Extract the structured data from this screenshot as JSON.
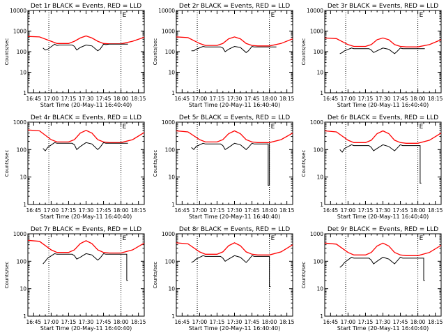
{
  "chart_data": [
    {
      "type": "line",
      "title": "Det 1r BLACK = Events, RED = LLD",
      "xlabel": "Start Time (20-May-11 16:40:40)",
      "ylabel": "Counts/sec",
      "yscale": "log",
      "ylim": [
        1,
        10000
      ],
      "xlim": [
        "16:40",
        "18:20"
      ],
      "xticks": [
        "16:45",
        "17:00",
        "17:15",
        "17:30",
        "17:45",
        "18:00",
        "18:15"
      ],
      "yticks": [
        "1",
        "10",
        "100",
        "1000",
        "10000"
      ],
      "markers": [
        "16:58",
        "18:00"
      ],
      "marker_label": "E",
      "series": [
        {
          "color": "#ff0000",
          "x": [
            "16:40",
            "16:50",
            "17:00",
            "17:05",
            "17:15",
            "17:20",
            "17:25",
            "17:30",
            "17:35",
            "17:40",
            "17:45",
            "17:50",
            "18:00",
            "18:10",
            "18:20"
          ],
          "values": [
            550,
            520,
            320,
            250,
            250,
            320,
            460,
            580,
            460,
            320,
            250,
            240,
            240,
            320,
            500
          ]
        },
        {
          "color": "#000000",
          "x": [
            "16:53",
            "16:55",
            "16:57",
            "17:03",
            "17:05",
            "17:07",
            "17:18",
            "17:20",
            "17:22",
            "17:25",
            "17:30",
            "17:35",
            "17:40",
            "17:42",
            "17:45",
            "17:47",
            "17:50",
            "18:00",
            "18:06"
          ],
          "values": [
            150,
            120,
            130,
            230,
            200,
            210,
            210,
            180,
            120,
            160,
            210,
            190,
            110,
            130,
            230,
            220,
            230,
            230,
            230
          ]
        }
      ]
    },
    {
      "type": "line",
      "title": "Det 2r BLACK = Events, RED = LLD",
      "xlabel": "Start Time (20-May-11 16:40:40)",
      "ylabel": "Counts/sec",
      "yscale": "log",
      "ylim": [
        1,
        10000
      ],
      "xlim": [
        "16:40",
        "18:20"
      ],
      "xticks": [
        "16:45",
        "17:00",
        "17:15",
        "17:30",
        "17:45",
        "18:00",
        "18:15"
      ],
      "yticks": [
        "1",
        "10",
        "100",
        "1000",
        "10000"
      ],
      "markers": [
        "16:58",
        "18:00"
      ],
      "marker_label": "E",
      "series": [
        {
          "color": "#ff0000",
          "x": [
            "16:40",
            "16:50",
            "17:00",
            "17:05",
            "17:15",
            "17:20",
            "17:25",
            "17:30",
            "17:35",
            "17:40",
            "17:45",
            "17:50",
            "18:00",
            "18:10",
            "18:20"
          ],
          "values": [
            520,
            480,
            250,
            200,
            200,
            250,
            420,
            520,
            420,
            250,
            200,
            190,
            190,
            250,
            420
          ]
        },
        {
          "color": "#000000",
          "x": [
            "16:53",
            "16:55",
            "16:57",
            "17:03",
            "17:05",
            "17:07",
            "17:18",
            "17:20",
            "17:22",
            "17:25",
            "17:30",
            "17:35",
            "17:40",
            "17:42",
            "17:45",
            "17:47",
            "17:50",
            "18:00",
            "18:06"
          ],
          "values": [
            110,
            110,
            130,
            180,
            170,
            170,
            170,
            150,
            100,
            130,
            180,
            160,
            90,
            110,
            180,
            170,
            170,
            170,
            170
          ]
        }
      ]
    },
    {
      "type": "line",
      "title": "Det 3r BLACK = Events, RED = LLD",
      "xlabel": "Start Time (20-May-11 16:40:40)",
      "ylabel": "Counts/sec",
      "yscale": "log",
      "ylim": [
        1,
        10000
      ],
      "xlim": [
        "16:40",
        "18:20"
      ],
      "xticks": [
        "16:45",
        "17:00",
        "17:15",
        "17:30",
        "17:45",
        "18:00",
        "18:15"
      ],
      "yticks": [
        "1",
        "10",
        "100",
        "1000",
        "10000"
      ],
      "markers": [
        "16:58",
        "18:00"
      ],
      "marker_label": "E",
      "series": [
        {
          "color": "#ff0000",
          "x": [
            "16:40",
            "16:50",
            "17:00",
            "17:05",
            "17:15",
            "17:20",
            "17:25",
            "17:30",
            "17:35",
            "17:40",
            "17:45",
            "17:50",
            "18:00",
            "18:10",
            "18:20"
          ],
          "values": [
            460,
            430,
            220,
            180,
            180,
            220,
            380,
            460,
            380,
            220,
            180,
            170,
            170,
            220,
            380
          ]
        },
        {
          "color": "#000000",
          "x": [
            "16:53",
            "16:55",
            "16:57",
            "17:03",
            "17:05",
            "17:07",
            "17:18",
            "17:20",
            "17:22",
            "17:25",
            "17:30",
            "17:35",
            "17:40",
            "17:42",
            "17:45",
            "17:47",
            "17:50",
            "18:00",
            "18:06"
          ],
          "values": [
            80,
            90,
            110,
            150,
            140,
            140,
            140,
            120,
            90,
            110,
            150,
            130,
            80,
            100,
            150,
            140,
            140,
            140,
            140
          ]
        }
      ]
    },
    {
      "type": "line",
      "title": "Det 4r BLACK = Events, RED = LLD",
      "xlabel": "Start Time (20-May-11 16:40:40)",
      "ylabel": "Counts/sec",
      "yscale": "log",
      "ylim": [
        1,
        1000
      ],
      "xlim": [
        "16:40",
        "18:20"
      ],
      "xticks": [
        "16:45",
        "17:00",
        "17:15",
        "17:30",
        "17:45",
        "18:00",
        "18:15"
      ],
      "yticks": [
        "1",
        "10",
        "100",
        "1000"
      ],
      "markers": [
        "16:58",
        "18:00"
      ],
      "marker_label": "E",
      "series": [
        {
          "color": "#ff0000",
          "x": [
            "16:40",
            "16:50",
            "17:00",
            "17:05",
            "17:15",
            "17:20",
            "17:25",
            "17:30",
            "17:35",
            "17:40",
            "17:45",
            "17:50",
            "18:00",
            "18:10",
            "18:20"
          ],
          "values": [
            520,
            480,
            230,
            190,
            190,
            230,
            400,
            500,
            400,
            230,
            190,
            180,
            180,
            230,
            420
          ]
        },
        {
          "color": "#000000",
          "x": [
            "16:53",
            "16:55",
            "16:57",
            "17:03",
            "17:05",
            "17:07",
            "17:18",
            "17:20",
            "17:22",
            "17:25",
            "17:30",
            "17:35",
            "17:40",
            "17:42",
            "17:45",
            "17:47",
            "17:50",
            "18:00",
            "18:06"
          ],
          "values": [
            110,
            90,
            120,
            180,
            170,
            170,
            170,
            150,
            100,
            130,
            180,
            160,
            100,
            120,
            180,
            170,
            170,
            170,
            170
          ]
        }
      ]
    },
    {
      "type": "line",
      "title": "Det 5r BLACK = Events, RED = LLD",
      "xlabel": "Start Time (20-May-11 16:40:40)",
      "ylabel": "Counts/sec",
      "yscale": "log",
      "ylim": [
        1,
        1000
      ],
      "xlim": [
        "16:40",
        "18:20"
      ],
      "xticks": [
        "16:45",
        "17:00",
        "17:15",
        "17:30",
        "17:45",
        "18:00",
        "18:15"
      ],
      "yticks": [
        "1",
        "10",
        "100",
        "1000"
      ],
      "markers": [
        "16:58",
        "18:00"
      ],
      "marker_label": "E",
      "series": [
        {
          "color": "#ff0000",
          "x": [
            "16:40",
            "16:50",
            "17:00",
            "17:05",
            "17:15",
            "17:20",
            "17:25",
            "17:30",
            "17:35",
            "17:40",
            "17:45",
            "17:50",
            "18:00",
            "18:10",
            "18:20"
          ],
          "values": [
            480,
            440,
            230,
            190,
            190,
            230,
            380,
            480,
            380,
            230,
            190,
            180,
            180,
            230,
            400
          ]
        },
        {
          "color": "#000000",
          "x": [
            "16:53",
            "16:55",
            "16:57",
            "17:03",
            "17:05",
            "17:07",
            "17:18",
            "17:20",
            "17:22",
            "17:25",
            "17:30",
            "17:35",
            "17:40",
            "17:42",
            "17:45",
            "17:47",
            "17:50",
            "17:59",
            "17:59",
            "18:00",
            "18:00"
          ],
          "values": [
            120,
            100,
            130,
            170,
            160,
            160,
            160,
            140,
            100,
            120,
            170,
            150,
            100,
            120,
            170,
            160,
            160,
            160,
            5,
            5,
            160
          ]
        }
      ]
    },
    {
      "type": "line",
      "title": "Det 6r BLACK = Events, RED = LLD",
      "xlabel": "Start Time (20-May-11 16:40:40)",
      "ylabel": "Counts/sec",
      "yscale": "log",
      "ylim": [
        1,
        1000
      ],
      "xlim": [
        "16:40",
        "18:20"
      ],
      "xticks": [
        "16:45",
        "17:00",
        "17:15",
        "17:30",
        "17:45",
        "18:00",
        "18:15"
      ],
      "yticks": [
        "1",
        "10",
        "100",
        "1000"
      ],
      "markers": [
        "16:58",
        "18:00"
      ],
      "marker_label": "E",
      "series": [
        {
          "color": "#ff0000",
          "x": [
            "16:40",
            "16:50",
            "17:00",
            "17:05",
            "17:15",
            "17:20",
            "17:25",
            "17:30",
            "17:35",
            "17:40",
            "17:45",
            "17:50",
            "18:00",
            "18:10",
            "18:20"
          ],
          "values": [
            480,
            440,
            220,
            180,
            180,
            220,
            380,
            480,
            380,
            220,
            180,
            170,
            170,
            220,
            400
          ]
        },
        {
          "color": "#000000",
          "x": [
            "16:53",
            "16:55",
            "16:57",
            "17:03",
            "17:05",
            "17:07",
            "17:18",
            "17:20",
            "17:22",
            "17:25",
            "17:30",
            "17:35",
            "17:40",
            "17:42",
            "17:45",
            "17:47",
            "17:50",
            "18:02",
            "18:02",
            "18:03"
          ],
          "values": [
            100,
            80,
            110,
            150,
            140,
            140,
            140,
            120,
            90,
            110,
            150,
            130,
            90,
            110,
            150,
            140,
            140,
            140,
            6,
            6
          ]
        }
      ]
    },
    {
      "type": "line",
      "title": "Det 7r BLACK = Events, RED = LLD",
      "xlabel": "Start Time (20-May-11 16:40:40)",
      "ylabel": "Counts/sec",
      "yscale": "log",
      "ylim": [
        1,
        1000
      ],
      "xlim": [
        "16:40",
        "18:20"
      ],
      "xticks": [
        "16:45",
        "17:00",
        "17:15",
        "17:30",
        "17:45",
        "18:00",
        "18:15"
      ],
      "yticks": [
        "1",
        "10",
        "100",
        "1000"
      ],
      "markers": [
        "16:58",
        "18:00"
      ],
      "marker_label": "E",
      "series": [
        {
          "color": "#ff0000",
          "x": [
            "16:40",
            "16:50",
            "17:00",
            "17:05",
            "17:15",
            "17:20",
            "17:25",
            "17:30",
            "17:35",
            "17:40",
            "17:45",
            "17:50",
            "18:00",
            "18:10",
            "18:20"
          ],
          "values": [
            580,
            530,
            260,
            210,
            210,
            260,
            440,
            560,
            440,
            260,
            210,
            200,
            200,
            260,
            460
          ]
        },
        {
          "color": "#000000",
          "x": [
            "16:53",
            "16:55",
            "16:57",
            "17:03",
            "17:05",
            "17:07",
            "17:18",
            "17:20",
            "17:22",
            "17:25",
            "17:30",
            "17:35",
            "17:40",
            "17:42",
            "17:45",
            "17:47",
            "17:50",
            "18:05",
            "18:05",
            "18:06"
          ],
          "values": [
            80,
            100,
            130,
            190,
            180,
            180,
            180,
            160,
            120,
            140,
            190,
            170,
            110,
            130,
            190,
            180,
            180,
            180,
            20,
            20
          ]
        }
      ]
    },
    {
      "type": "line",
      "title": "Det 8r BLACK = Events, RED = LLD",
      "xlabel": "Start Time (20-May-11 16:40:40)",
      "ylabel": "Counts/sec",
      "yscale": "log",
      "ylim": [
        1,
        1000
      ],
      "xlim": [
        "16:40",
        "18:20"
      ],
      "xticks": [
        "16:45",
        "17:00",
        "17:15",
        "17:30",
        "17:45",
        "18:00",
        "18:15"
      ],
      "yticks": [
        "1",
        "10",
        "100",
        "1000"
      ],
      "markers": [
        "16:58",
        "18:00"
      ],
      "marker_label": "E",
      "series": [
        {
          "color": "#ff0000",
          "x": [
            "16:40",
            "16:50",
            "17:00",
            "17:05",
            "17:15",
            "17:20",
            "17:25",
            "17:30",
            "17:35",
            "17:40",
            "17:45",
            "17:50",
            "18:00",
            "18:10",
            "18:20"
          ],
          "values": [
            470,
            430,
            220,
            180,
            180,
            220,
            370,
            470,
            370,
            220,
            180,
            170,
            170,
            220,
            400
          ]
        },
        {
          "color": "#000000",
          "x": [
            "16:53",
            "16:55",
            "16:57",
            "17:03",
            "17:05",
            "17:07",
            "17:18",
            "17:20",
            "17:22",
            "17:25",
            "17:30",
            "17:35",
            "17:40",
            "17:42",
            "17:45",
            "17:47",
            "17:50",
            "18:00",
            "18:00",
            "18:01"
          ],
          "values": [
            90,
            100,
            120,
            160,
            150,
            150,
            150,
            130,
            100,
            120,
            160,
            140,
            90,
            110,
            160,
            150,
            150,
            150,
            12,
            12
          ]
        }
      ]
    },
    {
      "type": "line",
      "title": "Det 9r BLACK = Events, RED = LLD",
      "xlabel": "Start Time (20-May-11 16:40:40)",
      "ylabel": "Counts/sec",
      "yscale": "log",
      "ylim": [
        1,
        1000
      ],
      "xlim": [
        "16:40",
        "18:20"
      ],
      "xticks": [
        "16:45",
        "17:00",
        "17:15",
        "17:30",
        "17:45",
        "18:00",
        "18:15"
      ],
      "yticks": [
        "1",
        "10",
        "100",
        "1000"
      ],
      "markers": [
        "16:58",
        "18:00"
      ],
      "marker_label": "E",
      "series": [
        {
          "color": "#ff0000",
          "x": [
            "16:40",
            "16:50",
            "17:00",
            "17:05",
            "17:15",
            "17:20",
            "17:25",
            "17:30",
            "17:35",
            "17:40",
            "17:45",
            "17:50",
            "18:00",
            "18:10",
            "18:20"
          ],
          "values": [
            460,
            420,
            210,
            170,
            170,
            210,
            360,
            460,
            360,
            210,
            170,
            160,
            160,
            210,
            380
          ]
        },
        {
          "color": "#000000",
          "x": [
            "16:53",
            "16:55",
            "16:57",
            "17:03",
            "17:05",
            "17:07",
            "17:18",
            "17:20",
            "17:22",
            "17:25",
            "17:30",
            "17:35",
            "17:40",
            "17:42",
            "17:45",
            "17:47",
            "17:50",
            "18:05",
            "18:05",
            "18:06"
          ],
          "values": [
            60,
            70,
            90,
            140,
            130,
            130,
            130,
            110,
            80,
            100,
            140,
            120,
            80,
            100,
            140,
            130,
            130,
            130,
            20,
            20
          ]
        }
      ]
    }
  ]
}
